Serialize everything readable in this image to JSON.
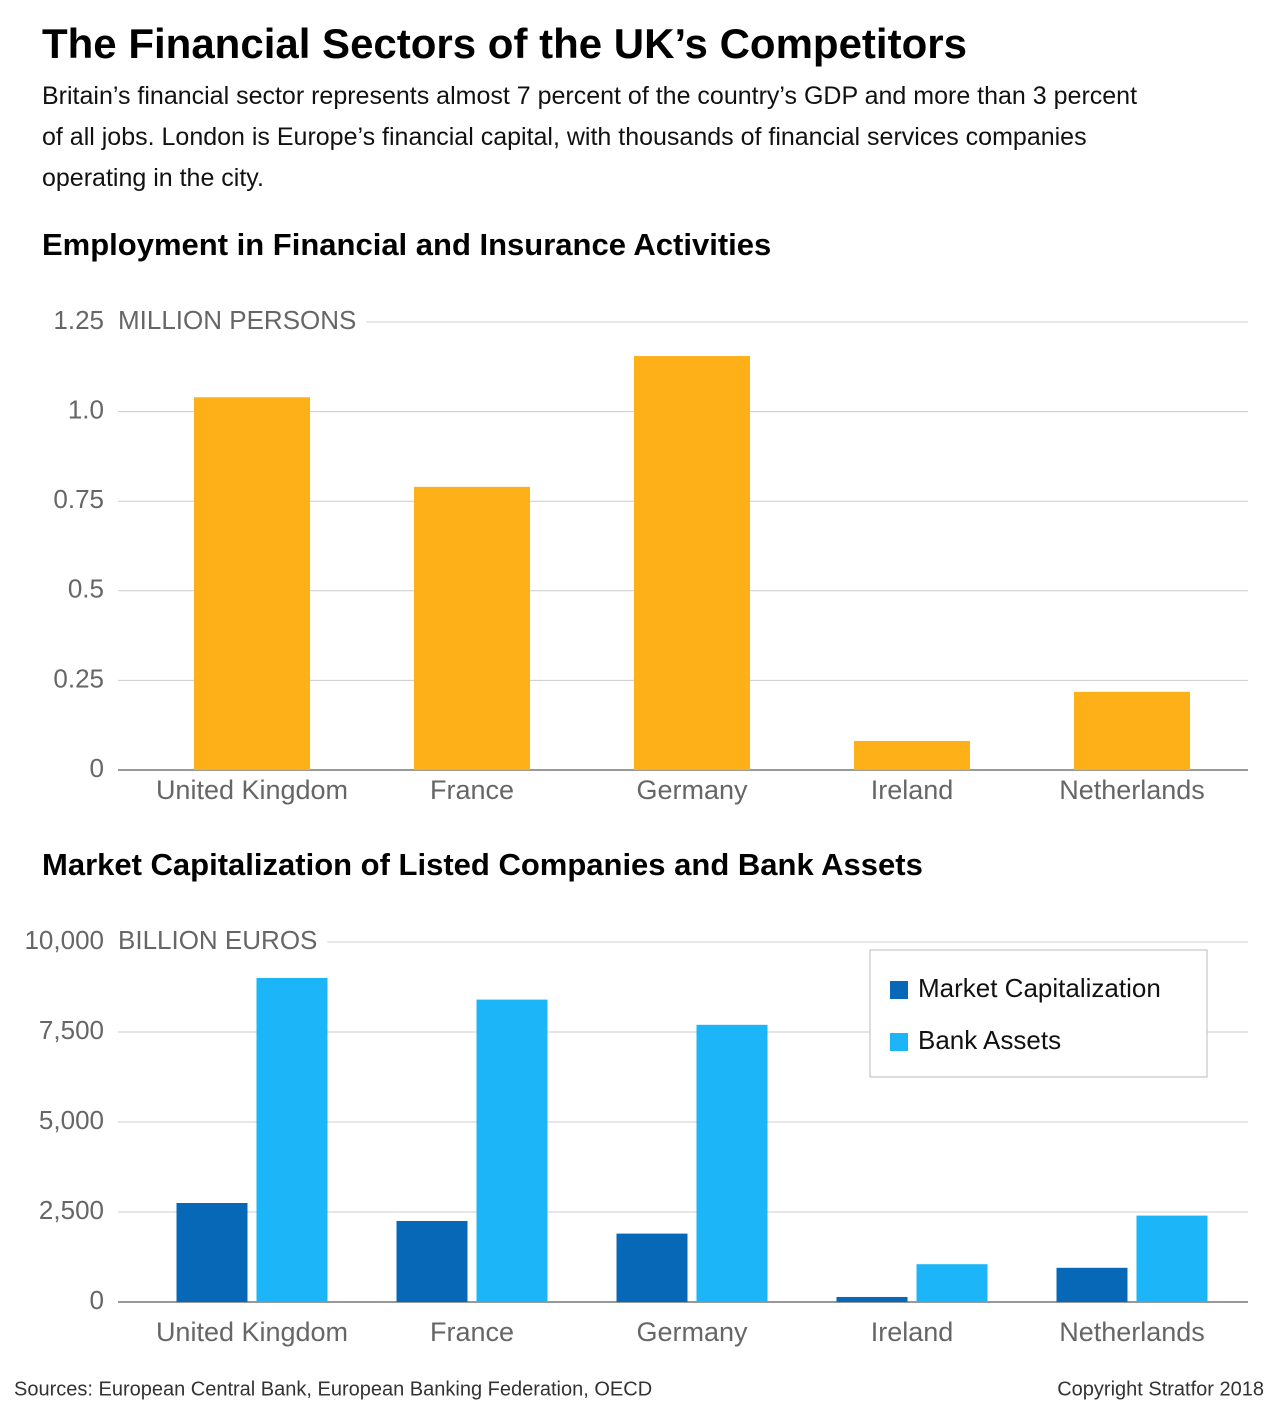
{
  "title": "The Financial Sectors of the UK’s Competitors",
  "subtitle": "Britain’s financial sector represents almost 7 percent of the country’s GDP and more than 3 percent of all jobs. London is Europe’s financial capital, with thousands of financial services companies operating in the city.",
  "sources": "Sources: European Central Bank, European Banking Federation, OECD",
  "copyright": "Copyright Stratfor 2018",
  "chart_data": [
    {
      "type": "bar",
      "title": "Employment in Financial and Insurance Activities",
      "y_unit": "MILLION PERSONS",
      "categories": [
        "United Kingdom",
        "France",
        "Germany",
        "Ireland",
        "Netherlands"
      ],
      "values": [
        1.04,
        0.79,
        1.155,
        0.081,
        0.218
      ],
      "color": "#fdb018",
      "ylim": [
        0,
        1.25
      ],
      "yticks": [
        0,
        0.25,
        0.5,
        0.75,
        {
          "value": 1,
          "label": "1.0"
        },
        1.25
      ],
      "grid": true
    },
    {
      "type": "bar",
      "title": "Market Capitalization of Listed Companies and Bank Assets",
      "y_unit": "BILLION EUROS",
      "categories": [
        "United Kingdom",
        "France",
        "Germany",
        "Ireland",
        "Netherlands"
      ],
      "series": [
        {
          "name": "Market Capitalization",
          "color": "#0868b8",
          "values": [
            2750,
            2250,
            1900,
            140,
            950
          ]
        },
        {
          "name": "Bank Assets",
          "color": "#1cb5f7",
          "values": [
            9000,
            8400,
            7700,
            1050,
            2400
          ]
        }
      ],
      "ylim": [
        0,
        10000
      ],
      "yticks": [
        0,
        {
          "value": 2500,
          "label": "2,500"
        },
        {
          "value": 5000,
          "label": "5,000"
        },
        {
          "value": 7500,
          "label": "7,500"
        },
        {
          "value": 10000,
          "label": "10,000"
        }
      ],
      "grid": true,
      "legend": "top-right"
    }
  ]
}
